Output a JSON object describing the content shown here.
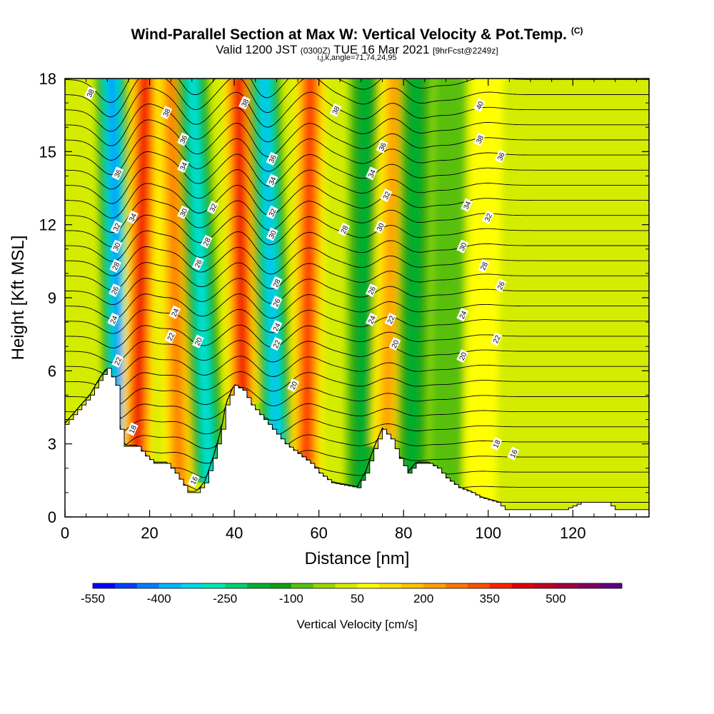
{
  "header": {
    "title": "Wind-Parallel Section at Max W: Vertical Velocity & Pot.Temp.",
    "copyright": "(C)",
    "valid_main": "Valid 1200 JST",
    "valid_utc": "(0300Z)",
    "valid_date": "TUE 16 Mar 2021",
    "forecast": "[9hrFcst@2249z]",
    "indices": "i,j,k,angle=71,74,24,95"
  },
  "chart_data": {
    "type": "heatmap",
    "xlabel": "Distance [nm]",
    "ylabel": "Height [Kft MSL]",
    "xlim": [
      0,
      138
    ],
    "ylim": [
      0,
      18
    ],
    "xticks": [
      0,
      20,
      40,
      60,
      80,
      100,
      120
    ],
    "yticks": [
      0,
      3,
      6,
      9,
      12,
      15,
      18
    ],
    "colorbar": {
      "label": "Vertical Velocity [cm/s]",
      "ticks": [
        -550,
        -400,
        -250,
        -100,
        50,
        200,
        350,
        500
      ],
      "min": -550,
      "max": 575,
      "step": 50,
      "colors": [
        "#0000ff",
        "#0040ff",
        "#0080ff",
        "#00b4ff",
        "#00d8e8",
        "#00e8b0",
        "#00d070",
        "#00b030",
        "#10a010",
        "#58c010",
        "#98d800",
        "#d4ec00",
        "#ffff00",
        "#ffe000",
        "#ffc000",
        "#ffa000",
        "#ff7800",
        "#ff5000",
        "#ff2000",
        "#e00000",
        "#c00020",
        "#a00040",
        "#800060",
        "#600080"
      ]
    },
    "terrain_kft": [
      [
        0,
        3.8
      ],
      [
        2,
        4.2
      ],
      [
        4,
        4.6
      ],
      [
        6,
        5.0
      ],
      [
        8,
        5.6
      ],
      [
        10,
        6.1
      ],
      [
        12,
        5.4
      ],
      [
        13,
        3.6
      ],
      [
        14,
        2.9
      ],
      [
        17,
        2.9
      ],
      [
        19,
        2.5
      ],
      [
        21,
        2.2
      ],
      [
        24,
        2.2
      ],
      [
        26,
        1.8
      ],
      [
        28,
        1.3
      ],
      [
        29,
        1.0
      ],
      [
        31,
        1.0
      ],
      [
        33,
        1.4
      ],
      [
        35,
        2.4
      ],
      [
        37,
        3.6
      ],
      [
        38,
        4.6
      ],
      [
        40,
        5.4
      ],
      [
        42,
        5.2
      ],
      [
        44,
        4.6
      ],
      [
        46,
        4.2
      ],
      [
        48,
        3.8
      ],
      [
        50,
        3.4
      ],
      [
        52,
        3.0
      ],
      [
        55,
        2.6
      ],
      [
        58,
        2.2
      ],
      [
        60,
        1.8
      ],
      [
        63,
        1.4
      ],
      [
        66,
        1.3
      ],
      [
        69,
        1.2
      ],
      [
        71,
        1.8
      ],
      [
        73,
        2.8
      ],
      [
        75,
        3.6
      ],
      [
        77,
        3.2
      ],
      [
        79,
        2.4
      ],
      [
        81,
        1.8
      ],
      [
        83,
        2.2
      ],
      [
        86,
        2.2
      ],
      [
        88,
        2.0
      ],
      [
        90,
        1.6
      ],
      [
        93,
        1.2
      ],
      [
        96,
        1.0
      ],
      [
        98,
        0.8
      ],
      [
        102,
        0.6
      ],
      [
        104,
        0.3
      ],
      [
        118,
        0.3
      ],
      [
        122,
        0.6
      ],
      [
        128,
        0.6
      ],
      [
        130,
        0.3
      ],
      [
        138,
        0.3
      ]
    ],
    "vertical_velocity_bands": [
      {
        "x_bottom": 13,
        "x_top": 11,
        "peak_cm_s": -450
      },
      {
        "x_bottom": 17,
        "x_top": 19,
        "peak_cm_s": 400
      },
      {
        "x_bottom": 27,
        "x_top": 25,
        "peak_cm_s": 250
      },
      {
        "x_bottom": 34,
        "x_top": 30,
        "peak_cm_s": -350
      },
      {
        "x_bottom": 42,
        "x_top": 41,
        "peak_cm_s": 400
      },
      {
        "x_bottom": 50,
        "x_top": 47,
        "peak_cm_s": -400
      },
      {
        "x_bottom": 57,
        "x_top": 58,
        "peak_cm_s": 350
      },
      {
        "x_bottom": 70,
        "x_top": 71,
        "peak_cm_s": -200
      },
      {
        "x_bottom": 76,
        "x_top": 78,
        "peak_cm_s": 200
      },
      {
        "x_bottom": 82,
        "x_top": 83,
        "peak_cm_s": -200
      },
      {
        "x_bottom": 90,
        "x_top": 91,
        "peak_cm_s": -100
      },
      {
        "x_bottom": 98,
        "x_top": 100,
        "peak_cm_s": 50
      }
    ],
    "theta_contours": [
      16,
      18,
      20,
      22,
      24,
      26,
      28,
      30,
      32,
      34,
      36,
      38,
      40
    ],
    "contour_labels": [
      {
        "text": "38",
        "x": 6,
        "y": 17.4
      },
      {
        "text": "36",
        "x": 12.5,
        "y": 14.1
      },
      {
        "text": "34",
        "x": 16,
        "y": 12.3
      },
      {
        "text": "32",
        "x": 12.2,
        "y": 11.9
      },
      {
        "text": "30",
        "x": 12.2,
        "y": 11.1
      },
      {
        "text": "28",
        "x": 12,
        "y": 10.3
      },
      {
        "text": "26",
        "x": 11.8,
        "y": 9.3
      },
      {
        "text": "24",
        "x": 11.5,
        "y": 8.1
      },
      {
        "text": "22",
        "x": 12.5,
        "y": 6.4
      },
      {
        "text": "18",
        "x": 16,
        "y": 3.6
      },
      {
        "text": "38",
        "x": 24,
        "y": 16.6
      },
      {
        "text": "36",
        "x": 28,
        "y": 15.5
      },
      {
        "text": "34",
        "x": 28,
        "y": 14.4
      },
      {
        "text": "30",
        "x": 28,
        "y": 12.5
      },
      {
        "text": "24",
        "x": 26,
        "y": 8.4
      },
      {
        "text": "22",
        "x": 25,
        "y": 7.4
      },
      {
        "text": "32",
        "x": 35,
        "y": 12.7
      },
      {
        "text": "28",
        "x": 33.5,
        "y": 11.3
      },
      {
        "text": "26",
        "x": 31.5,
        "y": 10.4
      },
      {
        "text": "20",
        "x": 31.5,
        "y": 7.2
      },
      {
        "text": "16",
        "x": 30.5,
        "y": 1.5
      },
      {
        "text": "38",
        "x": 42.5,
        "y": 17.0
      },
      {
        "text": "36",
        "x": 49,
        "y": 14.7
      },
      {
        "text": "34",
        "x": 49,
        "y": 13.8
      },
      {
        "text": "32",
        "x": 49,
        "y": 12.5
      },
      {
        "text": "30",
        "x": 49,
        "y": 11.6
      },
      {
        "text": "28",
        "x": 50,
        "y": 9.6
      },
      {
        "text": "26",
        "x": 50,
        "y": 8.8
      },
      {
        "text": "24",
        "x": 50,
        "y": 7.8
      },
      {
        "text": "22",
        "x": 50,
        "y": 7.1
      },
      {
        "text": "20",
        "x": 54,
        "y": 5.4
      },
      {
        "text": "38",
        "x": 64,
        "y": 16.7
      },
      {
        "text": "28",
        "x": 66,
        "y": 11.8
      },
      {
        "text": "36",
        "x": 75,
        "y": 15.2
      },
      {
        "text": "34",
        "x": 72.5,
        "y": 14.1
      },
      {
        "text": "32",
        "x": 76,
        "y": 13.2
      },
      {
        "text": "30",
        "x": 74.5,
        "y": 11.9
      },
      {
        "text": "26",
        "x": 72.5,
        "y": 9.3
      },
      {
        "text": "24",
        "x": 72.5,
        "y": 8.1
      },
      {
        "text": "22",
        "x": 77,
        "y": 8.1
      },
      {
        "text": "20",
        "x": 78,
        "y": 7.1
      },
      {
        "text": "40",
        "x": 98,
        "y": 16.9
      },
      {
        "text": "38",
        "x": 98,
        "y": 15.5
      },
      {
        "text": "36",
        "x": 103,
        "y": 14.8
      },
      {
        "text": "34",
        "x": 95,
        "y": 12.8
      },
      {
        "text": "32",
        "x": 100,
        "y": 12.3
      },
      {
        "text": "30",
        "x": 94,
        "y": 11.1
      },
      {
        "text": "28",
        "x": 99,
        "y": 10.3
      },
      {
        "text": "26",
        "x": 103,
        "y": 9.5
      },
      {
        "text": "24",
        "x": 94,
        "y": 8.3
      },
      {
        "text": "22",
        "x": 102,
        "y": 7.3
      },
      {
        "text": "20",
        "x": 94,
        "y": 6.6
      },
      {
        "text": "18",
        "x": 102,
        "y": 3.0
      },
      {
        "text": "16",
        "x": 106,
        "y": 2.6
      }
    ]
  }
}
